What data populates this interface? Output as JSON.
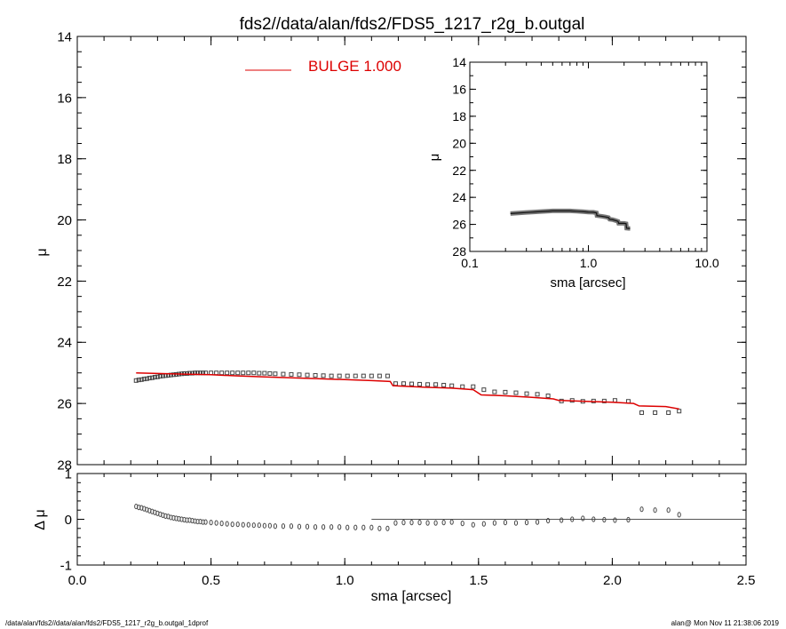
{
  "page": {
    "title": "fds2//data/alan/fds2/FDS5_1217_r2g_b.outgal",
    "footer_left": "/data/alan/fds2//data/alan/fds2/FDS5_1217_r2g_b.outgal_1dprof",
    "footer_right": "alan@  Mon Nov 11 21:38:06 2019"
  },
  "colors": {
    "model": "#dd0000",
    "data": "#444444",
    "axes": "#000000"
  },
  "chart_data": [
    {
      "id": "main",
      "type": "scatter",
      "ylabel": "μ",
      "xlim": [
        0.0,
        2.5
      ],
      "ylim": [
        28,
        14
      ],
      "xticks": [
        0.0,
        0.5,
        1.0,
        1.5,
        2.0,
        2.5
      ],
      "xtick_labels": [
        "0.0",
        "0.5",
        "1.0",
        "1.5",
        "2.0",
        "2.5"
      ],
      "yticks": [
        14,
        16,
        18,
        20,
        22,
        24,
        26,
        28
      ],
      "ytick_labels": [
        "14",
        "16",
        "18",
        "20",
        "22",
        "24",
        "26",
        "28"
      ],
      "legend": {
        "label": "BULGE  1.000",
        "placement": "top-center"
      },
      "series": [
        {
          "name": "BULGE  1.000",
          "kind": "line",
          "x": [
            0.22,
            0.3,
            0.4,
            0.5,
            0.6,
            0.7,
            0.8,
            0.9,
            1.0,
            1.1,
            1.17,
            1.18,
            1.3,
            1.4,
            1.48,
            1.51,
            1.6,
            1.7,
            1.78,
            1.8,
            1.9,
            2.0,
            2.08,
            2.1,
            2.2,
            2.25
          ],
          "y": [
            25.0,
            25.02,
            25.04,
            25.06,
            25.1,
            25.13,
            25.16,
            25.19,
            25.22,
            25.25,
            25.28,
            25.42,
            25.47,
            25.5,
            25.55,
            25.72,
            25.75,
            25.8,
            25.85,
            25.9,
            25.93,
            25.96,
            26.0,
            26.08,
            26.1,
            26.18
          ]
        },
        {
          "name": "",
          "kind": "markers",
          "x": [
            0.22,
            0.23,
            0.24,
            0.25,
            0.26,
            0.27,
            0.28,
            0.29,
            0.3,
            0.31,
            0.32,
            0.33,
            0.34,
            0.35,
            0.36,
            0.37,
            0.38,
            0.39,
            0.4,
            0.41,
            0.42,
            0.43,
            0.44,
            0.45,
            0.46,
            0.47,
            0.48,
            0.5,
            0.52,
            0.54,
            0.56,
            0.58,
            0.6,
            0.62,
            0.64,
            0.66,
            0.68,
            0.7,
            0.72,
            0.74,
            0.77,
            0.8,
            0.83,
            0.86,
            0.89,
            0.92,
            0.95,
            0.98,
            1.01,
            1.04,
            1.07,
            1.1,
            1.13,
            1.16,
            1.19,
            1.22,
            1.25,
            1.28,
            1.31,
            1.34,
            1.37,
            1.4,
            1.44,
            1.48,
            1.52,
            1.56,
            1.6,
            1.64,
            1.68,
            1.72,
            1.76,
            1.81,
            1.85,
            1.89,
            1.93,
            1.97,
            2.01,
            2.06,
            2.11,
            2.16,
            2.21,
            2.25
          ],
          "y": [
            25.25,
            25.23,
            25.22,
            25.2,
            25.19,
            25.17,
            25.16,
            25.14,
            25.13,
            25.11,
            25.1,
            25.09,
            25.08,
            25.07,
            25.06,
            25.05,
            25.04,
            25.03,
            25.02,
            25.02,
            25.01,
            25.01,
            25.0,
            25.0,
            25.0,
            25.0,
            25.0,
            25.0,
            25.0,
            25.0,
            25.0,
            25.0,
            25.0,
            25.0,
            25.0,
            25.0,
            25.01,
            25.01,
            25.02,
            25.03,
            25.04,
            25.05,
            25.06,
            25.07,
            25.08,
            25.09,
            25.1,
            25.1,
            25.1,
            25.1,
            25.1,
            25.1,
            25.1,
            25.1,
            25.35,
            25.35,
            25.36,
            25.37,
            25.38,
            25.38,
            25.4,
            25.42,
            25.45,
            25.45,
            25.55,
            25.62,
            25.63,
            25.65,
            25.68,
            25.7,
            25.75,
            25.92,
            25.9,
            25.93,
            25.92,
            25.92,
            25.9,
            25.93,
            26.3,
            26.3,
            26.3,
            26.25
          ]
        }
      ]
    },
    {
      "id": "residual",
      "type": "scatter",
      "xlabel": "sma [arcsec]",
      "ylabel": "Δ μ",
      "xlim": [
        0.0,
        2.5
      ],
      "ylim": [
        -1,
        1
      ],
      "xticks": [
        0.0,
        0.5,
        1.0,
        1.5,
        2.0,
        2.5
      ],
      "xtick_labels": [
        "0.0",
        "0.5",
        "1.0",
        "1.5",
        "2.0",
        "2.5"
      ],
      "yticks": [
        1,
        0,
        -1
      ],
      "ytick_labels": [
        "1",
        "0",
        "-1"
      ],
      "zero_line_from_x": 1.1,
      "series": [
        {
          "name": "",
          "kind": "markers",
          "x": [
            0.22,
            0.23,
            0.24,
            0.25,
            0.26,
            0.27,
            0.28,
            0.29,
            0.3,
            0.31,
            0.32,
            0.33,
            0.34,
            0.35,
            0.36,
            0.37,
            0.38,
            0.39,
            0.4,
            0.41,
            0.42,
            0.43,
            0.44,
            0.45,
            0.46,
            0.47,
            0.48,
            0.5,
            0.52,
            0.54,
            0.56,
            0.58,
            0.6,
            0.62,
            0.64,
            0.66,
            0.68,
            0.7,
            0.72,
            0.74,
            0.77,
            0.8,
            0.83,
            0.86,
            0.89,
            0.92,
            0.95,
            0.98,
            1.01,
            1.04,
            1.07,
            1.1,
            1.13,
            1.16,
            1.19,
            1.22,
            1.25,
            1.28,
            1.31,
            1.34,
            1.37,
            1.4,
            1.44,
            1.48,
            1.52,
            1.56,
            1.6,
            1.64,
            1.68,
            1.72,
            1.76,
            1.81,
            1.85,
            1.89,
            1.93,
            1.97,
            2.01,
            2.06,
            2.11,
            2.16,
            2.21,
            2.25
          ],
          "y": [
            0.28,
            0.26,
            0.25,
            0.23,
            0.21,
            0.19,
            0.17,
            0.15,
            0.13,
            0.11,
            0.09,
            0.07,
            0.06,
            0.04,
            0.03,
            0.02,
            0.01,
            0.0,
            -0.01,
            -0.02,
            -0.02,
            -0.03,
            -0.04,
            -0.05,
            -0.05,
            -0.06,
            -0.06,
            -0.07,
            -0.08,
            -0.09,
            -0.1,
            -0.11,
            -0.11,
            -0.12,
            -0.12,
            -0.13,
            -0.13,
            -0.14,
            -0.14,
            -0.15,
            -0.15,
            -0.15,
            -0.16,
            -0.16,
            -0.17,
            -0.17,
            -0.17,
            -0.17,
            -0.18,
            -0.18,
            -0.18,
            -0.18,
            -0.2,
            -0.2,
            -0.08,
            -0.07,
            -0.07,
            -0.07,
            -0.08,
            -0.08,
            -0.07,
            -0.06,
            -0.09,
            -0.12,
            -0.1,
            -0.08,
            -0.07,
            -0.08,
            -0.07,
            -0.06,
            -0.03,
            -0.02,
            0.0,
            0.02,
            0.0,
            -0.01,
            -0.02,
            -0.01,
            0.22,
            0.2,
            0.2,
            0.1
          ]
        }
      ]
    },
    {
      "id": "inset",
      "type": "line",
      "xlabel": "sma [arcsec]",
      "ylabel": "μ",
      "xscale": "log",
      "xlim": [
        0.1,
        10.0
      ],
      "ylim": [
        28,
        14
      ],
      "xticks": [
        0.1,
        1.0,
        10.0
      ],
      "xtick_labels": [
        "0.1",
        "1.0",
        "10.0"
      ],
      "yticks": [
        14,
        16,
        18,
        20,
        22,
        24,
        26,
        28
      ],
      "ytick_labels": [
        "14",
        "16",
        "18",
        "20",
        "22",
        "24",
        "26",
        "28"
      ],
      "series": [
        {
          "name": "",
          "kind": "line",
          "x": [
            0.22,
            0.3,
            0.4,
            0.5,
            0.6,
            0.7,
            0.8,
            0.9,
            1.0,
            1.1,
            1.17,
            1.18,
            1.3,
            1.4,
            1.48,
            1.51,
            1.6,
            1.7,
            1.78,
            1.8,
            1.9,
            2.0,
            2.08,
            2.1,
            2.2,
            2.25
          ],
          "y": [
            25.2,
            25.12,
            25.05,
            25.0,
            25.0,
            25.0,
            25.03,
            25.06,
            25.09,
            25.1,
            25.15,
            25.35,
            25.4,
            25.45,
            25.5,
            25.62,
            25.65,
            25.72,
            25.78,
            25.92,
            25.92,
            25.92,
            25.95,
            26.28,
            26.3,
            26.3
          ]
        }
      ]
    }
  ]
}
